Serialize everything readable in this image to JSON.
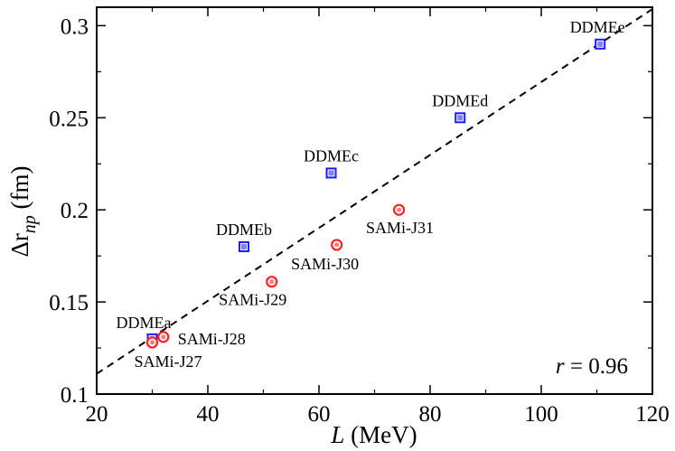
{
  "chart_data": {
    "type": "scatter",
    "xlabel_var": "L",
    "xlabel_unit": "(MeV)",
    "ylabel_var": "Δr",
    "ylabel_sub": "np",
    "ylabel_unit": "(fm)",
    "xlim": [
      20,
      120
    ],
    "ylim": [
      0.1,
      0.31
    ],
    "xticks": [
      20,
      40,
      60,
      80,
      100,
      120
    ],
    "xtick_labels": [
      "20",
      "40",
      "60",
      "80",
      "100",
      "120"
    ],
    "yticks": [
      0.1,
      0.15,
      0.2,
      0.25,
      0.3
    ],
    "ytick_labels": [
      "0.1",
      "0.15",
      "0.2",
      "0.25",
      "0.3"
    ],
    "series": [
      {
        "name": "DDME",
        "marker": "square",
        "color": "#1a1aff",
        "points": [
          {
            "label": "DDMEa",
            "x": 30.0,
            "y": 0.13
          },
          {
            "label": "DDMEb",
            "x": 46.5,
            "y": 0.18
          },
          {
            "label": "DDMEc",
            "x": 62.2,
            "y": 0.22
          },
          {
            "label": "DDMEd",
            "x": 85.4,
            "y": 0.25
          },
          {
            "label": "DDMEe",
            "x": 110.6,
            "y": 0.29
          }
        ]
      },
      {
        "name": "SAMi-J",
        "marker": "circle",
        "color": "#ff2020",
        "points": [
          {
            "label": "SAMi-J27",
            "x": 30.0,
            "y": 0.128
          },
          {
            "label": "SAMi-J28",
            "x": 32.0,
            "y": 0.131
          },
          {
            "label": "SAMi-J29",
            "x": 51.5,
            "y": 0.161
          },
          {
            "label": "SAMi-J30",
            "x": 63.2,
            "y": 0.181
          },
          {
            "label": "SAMi-J31",
            "x": 74.4,
            "y": 0.2
          }
        ]
      }
    ],
    "fit_line": {
      "style": "dashed",
      "x": [
        20,
        120
      ],
      "y": [
        0.111,
        0.309
      ]
    },
    "correlation_var": "r",
    "correlation_value": "= 0.96"
  }
}
